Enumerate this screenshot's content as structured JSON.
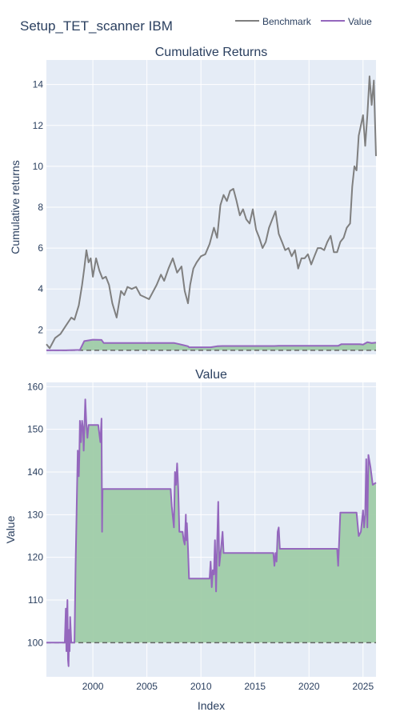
{
  "title": "Setup_TET_scanner IBM",
  "legend": [
    {
      "name": "Benchmark",
      "color": "#7f7f7f"
    },
    {
      "name": "Value",
      "color": "#9467bd"
    }
  ],
  "colors": {
    "plot_bg": "#e5ecf6",
    "fill": "#9fcca8",
    "baseline": "#666666"
  },
  "chart_data": [
    {
      "type": "line",
      "title": "Cumulative Returns",
      "xlabel": "",
      "ylabel": "Cumulative returns",
      "xlim": [
        1995.7,
        2026.2
      ],
      "ylim": [
        0.8,
        15.2
      ],
      "yticks": [
        2,
        4,
        6,
        8,
        10,
        12,
        14
      ],
      "grid": true,
      "baseline": 1,
      "series": [
        {
          "name": "Benchmark",
          "color": "#7f7f7f",
          "x": [
            1995.7,
            1996.0,
            1996.5,
            1997.0,
            1997.5,
            1998.0,
            1998.3,
            1998.7,
            1999.0,
            1999.2,
            1999.4,
            1999.6,
            1999.8,
            2000.0,
            2000.3,
            2000.6,
            2000.9,
            2001.2,
            2001.5,
            2001.8,
            2002.2,
            2002.6,
            2002.9,
            2003.2,
            2003.6,
            2004.0,
            2004.4,
            2004.8,
            2005.2,
            2005.5,
            2005.9,
            2006.3,
            2006.6,
            2007.0,
            2007.4,
            2007.8,
            2008.2,
            2008.5,
            2008.8,
            2009.0,
            2009.3,
            2009.6,
            2010.0,
            2010.4,
            2010.8,
            2011.2,
            2011.5,
            2011.8,
            2012.1,
            2012.4,
            2012.7,
            2013.0,
            2013.3,
            2013.6,
            2013.9,
            2014.2,
            2014.5,
            2014.8,
            2015.1,
            2015.4,
            2015.7,
            2016.0,
            2016.3,
            2016.6,
            2016.9,
            2017.2,
            2017.5,
            2017.8,
            2018.1,
            2018.4,
            2018.7,
            2019.0,
            2019.3,
            2019.6,
            2019.9,
            2020.2,
            2020.5,
            2020.8,
            2021.1,
            2021.4,
            2021.7,
            2022.0,
            2022.3,
            2022.6,
            2022.9,
            2023.2,
            2023.5,
            2023.8,
            2024.0,
            2024.2,
            2024.4,
            2024.6,
            2024.8,
            2025.0,
            2025.2,
            2025.4,
            2025.6,
            2025.8,
            2026.0,
            2026.2
          ],
          "y": [
            1.3,
            1.1,
            1.6,
            1.8,
            2.2,
            2.6,
            2.5,
            3.2,
            4.2,
            5.0,
            5.9,
            5.3,
            5.5,
            4.6,
            5.5,
            4.9,
            4.5,
            4.6,
            4.2,
            3.3,
            2.6,
            3.9,
            3.7,
            4.1,
            4.0,
            4.1,
            3.7,
            3.6,
            3.5,
            3.8,
            4.2,
            4.7,
            4.4,
            5.0,
            5.5,
            4.8,
            5.1,
            3.9,
            3.3,
            4.2,
            5.0,
            5.3,
            5.6,
            5.7,
            6.2,
            7.0,
            6.5,
            8.1,
            8.6,
            8.3,
            8.8,
            8.9,
            8.3,
            7.6,
            7.9,
            7.4,
            7.2,
            7.9,
            6.9,
            6.5,
            6.0,
            6.3,
            7.0,
            7.4,
            7.8,
            6.7,
            6.3,
            5.9,
            6.0,
            5.6,
            5.9,
            5.0,
            5.5,
            5.5,
            5.7,
            5.2,
            5.6,
            6.0,
            6.0,
            5.9,
            6.3,
            6.6,
            5.8,
            5.8,
            6.3,
            6.5,
            7.0,
            7.2,
            9.0,
            10.0,
            9.8,
            11.5,
            12.0,
            12.5,
            11.0,
            12.5,
            14.4,
            13.0,
            14.2,
            10.5
          ]
        },
        {
          "name": "Value",
          "color": "#9467bd",
          "fill": true,
          "x": [
            1995.7,
            1997.5,
            1998.8,
            1999.2,
            2000.0,
            2000.8,
            2001.0,
            2007.5,
            2008.0,
            2008.4,
            2008.8,
            2008.9,
            2010.9,
            2011.5,
            2012.0,
            2016.8,
            2017.2,
            2022.7,
            2023.0,
            2024.7,
            2025.0,
            2025.4,
            2025.8,
            2026.2
          ],
          "y": [
            1.0,
            1.0,
            1.02,
            1.45,
            1.52,
            1.51,
            1.36,
            1.36,
            1.3,
            1.25,
            1.2,
            1.15,
            1.15,
            1.2,
            1.21,
            1.21,
            1.22,
            1.22,
            1.3,
            1.3,
            1.28,
            1.4,
            1.35,
            1.38
          ]
        }
      ]
    },
    {
      "type": "line",
      "title": "Value",
      "xlabel": "Index",
      "ylabel": "Value",
      "xlim": [
        1995.7,
        2026.2
      ],
      "ylim": [
        92,
        161
      ],
      "xticks": [
        2000,
        2005,
        2010,
        2015,
        2020,
        2025
      ],
      "yticks": [
        100,
        110,
        120,
        130,
        140,
        150,
        160
      ],
      "grid": true,
      "baseline": 100,
      "series": [
        {
          "name": "Value",
          "color": "#9467bd",
          "fill": true,
          "x": [
            1995.7,
            1997.4,
            1997.5,
            1997.55,
            1997.6,
            1997.65,
            1997.7,
            1997.75,
            1997.8,
            1997.85,
            1997.9,
            1998.0,
            1998.3,
            1998.4,
            1998.6,
            1998.7,
            1998.75,
            1998.8,
            1998.85,
            1998.9,
            1999.0,
            1999.1,
            1999.15,
            1999.3,
            1999.4,
            1999.5,
            1999.6,
            1999.8,
            2000.2,
            2000.5,
            2000.7,
            2000.8,
            2000.85,
            2000.9,
            2001.0,
            2007.2,
            2007.3,
            2007.5,
            2007.6,
            2007.7,
            2007.8,
            2007.9,
            2008.0,
            2008.3,
            2008.4,
            2008.5,
            2008.6,
            2008.65,
            2008.7,
            2008.8,
            2008.9,
            2010.8,
            2010.9,
            2011.0,
            2011.1,
            2011.2,
            2011.3,
            2011.4,
            2011.5,
            2011.6,
            2011.7,
            2011.9,
            2012.0,
            2012.1,
            2016.7,
            2016.8,
            2016.9,
            2017.0,
            2017.1,
            2017.2,
            2017.3,
            2022.6,
            2022.7,
            2022.9,
            2024.4,
            2024.6,
            2024.8,
            2025.0,
            2025.1,
            2025.2,
            2025.3,
            2025.4,
            2025.5,
            2025.7,
            2025.9,
            2026.2
          ],
          "y": [
            100,
            100,
            108,
            98,
            106,
            110,
            96,
            94.5,
            103,
            98,
            106,
            100,
            100,
            118,
            145,
            139,
            144,
            152,
            150,
            147,
            152,
            150,
            145,
            157,
            151,
            148,
            151,
            151,
            151,
            151,
            147,
            152.5,
            126,
            136,
            136,
            136,
            132,
            127,
            140,
            137,
            142,
            136,
            126,
            126,
            124,
            123,
            130,
            124,
            128,
            122,
            115,
            115,
            119,
            113,
            117,
            116,
            124,
            112,
            123,
            133,
            118,
            123,
            126,
            121,
            121,
            118,
            121,
            119,
            126,
            127,
            122,
            122,
            118,
            130.5,
            130.5,
            125,
            126,
            131,
            127,
            130,
            143,
            127,
            144,
            141,
            137,
            137.5
          ]
        }
      ]
    }
  ]
}
